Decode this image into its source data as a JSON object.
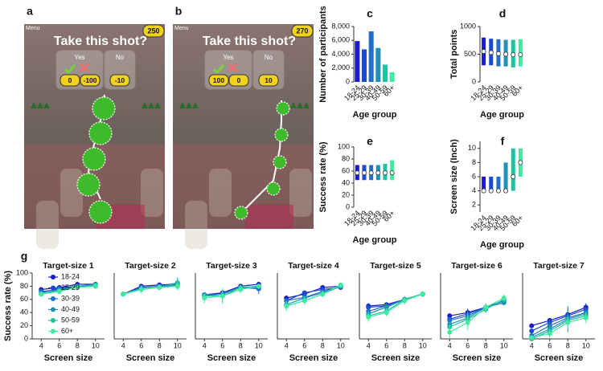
{
  "panel_labels": [
    "a",
    "b",
    "c",
    "d",
    "e",
    "f",
    "g"
  ],
  "screenshots": [
    {
      "menu": "Menu",
      "title": "Take this shot?",
      "points": "250",
      "yes": "Yes",
      "no": "No",
      "yes_success": "0",
      "yes_fail": "-100",
      "no_value": "-10"
    },
    {
      "menu": "Menu",
      "title": "Take this shot?",
      "points": "270",
      "yes": "Yes",
      "no": "No",
      "yes_success": "100",
      "yes_fail": "0",
      "no_value": "10"
    }
  ],
  "chart_data": [
    {
      "type": "bar",
      "ylabel": "Number of participants",
      "xlabel": "Age group",
      "categories": [
        "18-24",
        "25-29",
        "30-39",
        "40-49",
        "50-59",
        "60+"
      ],
      "values": [
        5900,
        4700,
        7300,
        4900,
        2500,
        1400
      ],
      "colors": [
        "#1a1ad0",
        "#1a4ad0",
        "#2070c8",
        "#2090b8",
        "#20c0a0",
        "#40eaa0"
      ],
      "ylim": [
        0,
        8000
      ],
      "yticks": [
        0,
        {
          "value": 2000,
          "label": "2,000"
        },
        {
          "value": 4000,
          "label": "4,000"
        },
        {
          "value": 6000,
          "label": "6,000"
        },
        {
          "value": 8000,
          "label": "8,000"
        }
      ]
    },
    {
      "type": "range",
      "ylabel": "Total points",
      "xlabel": "Age group",
      "categories": [
        "18-24",
        "25-29",
        "30-39",
        "40-49",
        "50-59",
        "60+"
      ],
      "low": [
        300,
        300,
        280,
        280,
        260,
        280
      ],
      "high": [
        800,
        780,
        770,
        760,
        760,
        770
      ],
      "median": [
        550,
        530,
        510,
        500,
        490,
        490
      ],
      "colors": [
        "#1a1ad0",
        "#1a4ad0",
        "#2070c8",
        "#2090b8",
        "#20c0a0",
        "#40eaa0"
      ],
      "ylim": [
        0,
        1000
      ],
      "yticks": [
        0,
        500,
        1000
      ]
    },
    {
      "type": "range",
      "ylabel": "Success rate (%)",
      "xlabel": "Age group",
      "categories": [
        "18-24",
        "25-29",
        "30-39",
        "40-49",
        "50-59",
        "60+"
      ],
      "low": [
        45,
        45,
        45,
        45,
        45,
        45
      ],
      "high": [
        70,
        70,
        70,
        70,
        72,
        78
      ],
      "median": [
        57,
        57,
        57,
        57,
        57,
        57
      ],
      "colors": [
        "#1a1ad0",
        "#1a4ad0",
        "#2070c8",
        "#2090b8",
        "#20c0a0",
        "#40eaa0"
      ],
      "ylim": [
        0,
        100
      ],
      "yticks": [
        0,
        20,
        40,
        60,
        80,
        100
      ]
    },
    {
      "type": "range",
      "ylabel": "Screen size (Inch)",
      "xlabel": "Age group",
      "categories": [
        "18-24",
        "25-29",
        "30-39",
        "40-49",
        "50-59",
        "60+"
      ],
      "low": [
        4,
        4,
        4,
        4,
        4,
        6
      ],
      "high": [
        6,
        6,
        6,
        8,
        10,
        10
      ],
      "median": [
        4,
        4,
        4,
        4,
        6,
        8
      ],
      "colors": [
        "#1a1ad0",
        "#1a4ad0",
        "#2070c8",
        "#2090b8",
        "#20c0a0",
        "#40eaa0"
      ],
      "ylim": [
        1,
        11
      ],
      "yticks": [
        2,
        4,
        6,
        8,
        10
      ]
    },
    {
      "type": "line",
      "title": "Target-size 1",
      "xlabel": "Screen size",
      "ylabel": "Success rate (%)",
      "legend": "upper left",
      "x": [
        4,
        6,
        8,
        10
      ],
      "xlim": [
        3,
        11
      ],
      "xticks": [
        4,
        6,
        8,
        10
      ],
      "ylim": [
        0,
        100
      ],
      "yticks": [
        0,
        20,
        40,
        60,
        80,
        100
      ],
      "series": [
        {
          "name": "18-24",
          "color": "#1a1ad0",
          "values": [
            75,
            78,
            83,
            83
          ],
          "errors": [
            2,
            2,
            2,
            2
          ]
        },
        {
          "name": "25-29",
          "color": "#1a4ad0",
          "values": [
            70,
            77,
            80,
            83
          ],
          "errors": [
            3,
            3,
            3,
            3
          ]
        },
        {
          "name": "30-39",
          "color": "#2070c8",
          "values": [
            72,
            75,
            80,
            82
          ],
          "errors": [
            2,
            2,
            2,
            2
          ]
        },
        {
          "name": "40-49",
          "color": "#2090b8",
          "values": [
            68,
            75,
            80,
            80
          ],
          "errors": [
            3,
            3,
            3,
            3
          ]
        },
        {
          "name": "50-59",
          "color": "#20c0a0",
          "values": [
            68,
            73,
            80,
            82
          ],
          "errors": [
            3,
            3,
            3,
            3
          ]
        },
        {
          "name": "60+",
          "color": "#40eaa0",
          "values": [
            68,
            72,
            78,
            80
          ],
          "errors": [
            4,
            4,
            4,
            4
          ]
        }
      ]
    },
    {
      "type": "line",
      "title": "Target-size 2",
      "xlabel": "Screen size",
      "x": [
        4,
        6,
        8,
        10
      ],
      "xlim": [
        3,
        11
      ],
      "xticks": [
        4,
        6,
        8,
        10
      ],
      "ylim": [
        0,
        100
      ],
      "series": [
        {
          "color": "#1a1ad0",
          "values": [
            68,
            80,
            82,
            83
          ],
          "errors": [
            3,
            3,
            3,
            3
          ]
        },
        {
          "color": "#1a4ad0",
          "values": [
            68,
            78,
            80,
            85
          ],
          "errors": [
            3,
            3,
            3,
            6
          ]
        },
        {
          "color": "#2070c8",
          "values": [
            68,
            78,
            80,
            80
          ],
          "errors": [
            3,
            3,
            3,
            5
          ]
        },
        {
          "color": "#2090b8",
          "values": [
            68,
            77,
            80,
            82
          ],
          "errors": [
            3,
            5,
            3,
            3
          ]
        },
        {
          "color": "#20c0a0",
          "values": [
            68,
            75,
            78,
            85
          ],
          "errors": [
            4,
            4,
            4,
            8
          ]
        },
        {
          "color": "#40eaa0",
          "values": [
            68,
            75,
            78,
            80
          ],
          "errors": [
            4,
            6,
            4,
            6
          ]
        }
      ]
    },
    {
      "type": "line",
      "title": "Target-size 3",
      "xlabel": "Screen size",
      "x": [
        4,
        6,
        8,
        10
      ],
      "xlim": [
        3,
        11
      ],
      "xticks": [
        4,
        6,
        8,
        10
      ],
      "ylim": [
        0,
        100
      ],
      "series": [
        {
          "color": "#1a1ad0",
          "values": [
            67,
            70,
            80,
            83
          ],
          "errors": [
            3,
            3,
            3,
            3
          ]
        },
        {
          "color": "#1a4ad0",
          "values": [
            67,
            68,
            78,
            78
          ],
          "errors": [
            3,
            3,
            3,
            3
          ]
        },
        {
          "color": "#2070c8",
          "values": [
            67,
            68,
            78,
            76
          ],
          "errors": [
            3,
            3,
            3,
            8
          ]
        },
        {
          "color": "#2090b8",
          "values": [
            65,
            68,
            78,
            80
          ],
          "errors": [
            4,
            4,
            3,
            3
          ]
        },
        {
          "color": "#20c0a0",
          "values": [
            65,
            65,
            78,
            80
          ],
          "errors": [
            5,
            10,
            4,
            4
          ]
        },
        {
          "color": "#40eaa0",
          "values": [
            62,
            65,
            75,
            80
          ],
          "errors": [
            8,
            12,
            6,
            4
          ]
        }
      ]
    },
    {
      "type": "line",
      "title": "Target-size 4",
      "xlabel": "Screen size",
      "x": [
        4,
        6,
        8,
        10
      ],
      "xlim": [
        3,
        11
      ],
      "xticks": [
        4,
        6,
        8,
        10
      ],
      "ylim": [
        0,
        100
      ],
      "series": [
        {
          "color": "#1a1ad0",
          "values": [
            62,
            68,
            78,
            80
          ],
          "errors": [
            4,
            3,
            3,
            3
          ]
        },
        {
          "color": "#1a4ad0",
          "values": [
            58,
            70,
            75,
            78
          ],
          "errors": [
            4,
            3,
            3,
            3
          ]
        },
        {
          "color": "#2070c8",
          "values": [
            58,
            63,
            72,
            80
          ],
          "errors": [
            4,
            4,
            3,
            3
          ]
        },
        {
          "color": "#2090b8",
          "values": [
            52,
            62,
            70,
            80
          ],
          "errors": [
            5,
            4,
            3,
            3
          ]
        },
        {
          "color": "#20c0a0",
          "values": [
            50,
            58,
            68,
            80
          ],
          "errors": [
            6,
            5,
            4,
            3
          ]
        },
        {
          "color": "#40eaa0",
          "values": [
            50,
            58,
            68,
            82
          ],
          "errors": [
            8,
            6,
            5,
            4
          ]
        }
      ]
    },
    {
      "type": "line",
      "title": "Target-size 5",
      "xlabel": "Screen size",
      "x": [
        4,
        6,
        8,
        10
      ],
      "xlim": [
        3,
        11
      ],
      "xticks": [
        4,
        6,
        8,
        10
      ],
      "ylim": [
        0,
        100
      ],
      "series": [
        {
          "color": "#1a1ad0",
          "values": [
            50,
            52,
            60,
            68
          ],
          "errors": [
            4,
            3,
            3,
            3
          ]
        },
        {
          "color": "#1a4ad0",
          "values": [
            48,
            50,
            60,
            68
          ],
          "errors": [
            4,
            4,
            3,
            3
          ]
        },
        {
          "color": "#2070c8",
          "values": [
            42,
            50,
            60,
            68
          ],
          "errors": [
            4,
            4,
            3,
            3
          ]
        },
        {
          "color": "#2090b8",
          "values": [
            38,
            48,
            60,
            68
          ],
          "errors": [
            5,
            5,
            4,
            3
          ]
        },
        {
          "color": "#20c0a0",
          "values": [
            35,
            42,
            60,
            68
          ],
          "errors": [
            6,
            5,
            5,
            4
          ]
        },
        {
          "color": "#40eaa0",
          "values": [
            33,
            40,
            58,
            68
          ],
          "errors": [
            7,
            6,
            6,
            5
          ]
        }
      ]
    },
    {
      "type": "line",
      "title": "Target-size 6",
      "xlabel": "Screen size",
      "x": [
        4,
        6,
        8,
        10
      ],
      "xlim": [
        3,
        11
      ],
      "xticks": [
        4,
        6,
        8,
        10
      ],
      "ylim": [
        0,
        100
      ],
      "series": [
        {
          "color": "#1a1ad0",
          "values": [
            35,
            40,
            48,
            58
          ],
          "errors": [
            4,
            6,
            4,
            3
          ]
        },
        {
          "color": "#1a4ad0",
          "values": [
            30,
            38,
            48,
            58
          ],
          "errors": [
            4,
            5,
            4,
            3
          ]
        },
        {
          "color": "#2070c8",
          "values": [
            28,
            35,
            48,
            55
          ],
          "errors": [
            5,
            5,
            4,
            3
          ]
        },
        {
          "color": "#2090b8",
          "values": [
            22,
            32,
            48,
            55
          ],
          "errors": [
            6,
            10,
            5,
            4
          ]
        },
        {
          "color": "#20c0a0",
          "values": [
            18,
            30,
            45,
            60
          ],
          "errors": [
            8,
            10,
            6,
            5
          ]
        },
        {
          "color": "#40eaa0",
          "values": [
            10,
            25,
            48,
            62
          ],
          "errors": [
            10,
            12,
            6,
            5
          ]
        }
      ]
    },
    {
      "type": "line",
      "title": "Target-size 7",
      "xlabel": "Screen size",
      "x": [
        4,
        6,
        8,
        10
      ],
      "xlim": [
        3,
        11
      ],
      "xticks": [
        4,
        6,
        8,
        10
      ],
      "ylim": [
        0,
        100
      ],
      "series": [
        {
          "color": "#1a1ad0",
          "values": [
            20,
            28,
            37,
            48
          ],
          "errors": [
            3,
            4,
            10,
            6
          ]
        },
        {
          "color": "#1a4ad0",
          "values": [
            12,
            25,
            35,
            45
          ],
          "errors": [
            4,
            5,
            6,
            6
          ]
        },
        {
          "color": "#2070c8",
          "values": [
            5,
            20,
            32,
            40
          ],
          "errors": [
            4,
            6,
            6,
            6
          ]
        },
        {
          "color": "#2090b8",
          "values": [
            2,
            15,
            30,
            38
          ],
          "errors": [
            4,
            8,
            20,
            6
          ]
        },
        {
          "color": "#20c0a0",
          "values": [
            0,
            12,
            28,
            35
          ],
          "errors": [
            3,
            8,
            8,
            6
          ]
        },
        {
          "color": "#40eaa0",
          "values": [
            2,
            8,
            25,
            32
          ],
          "errors": [
            3,
            6,
            8,
            8
          ]
        }
      ]
    }
  ]
}
